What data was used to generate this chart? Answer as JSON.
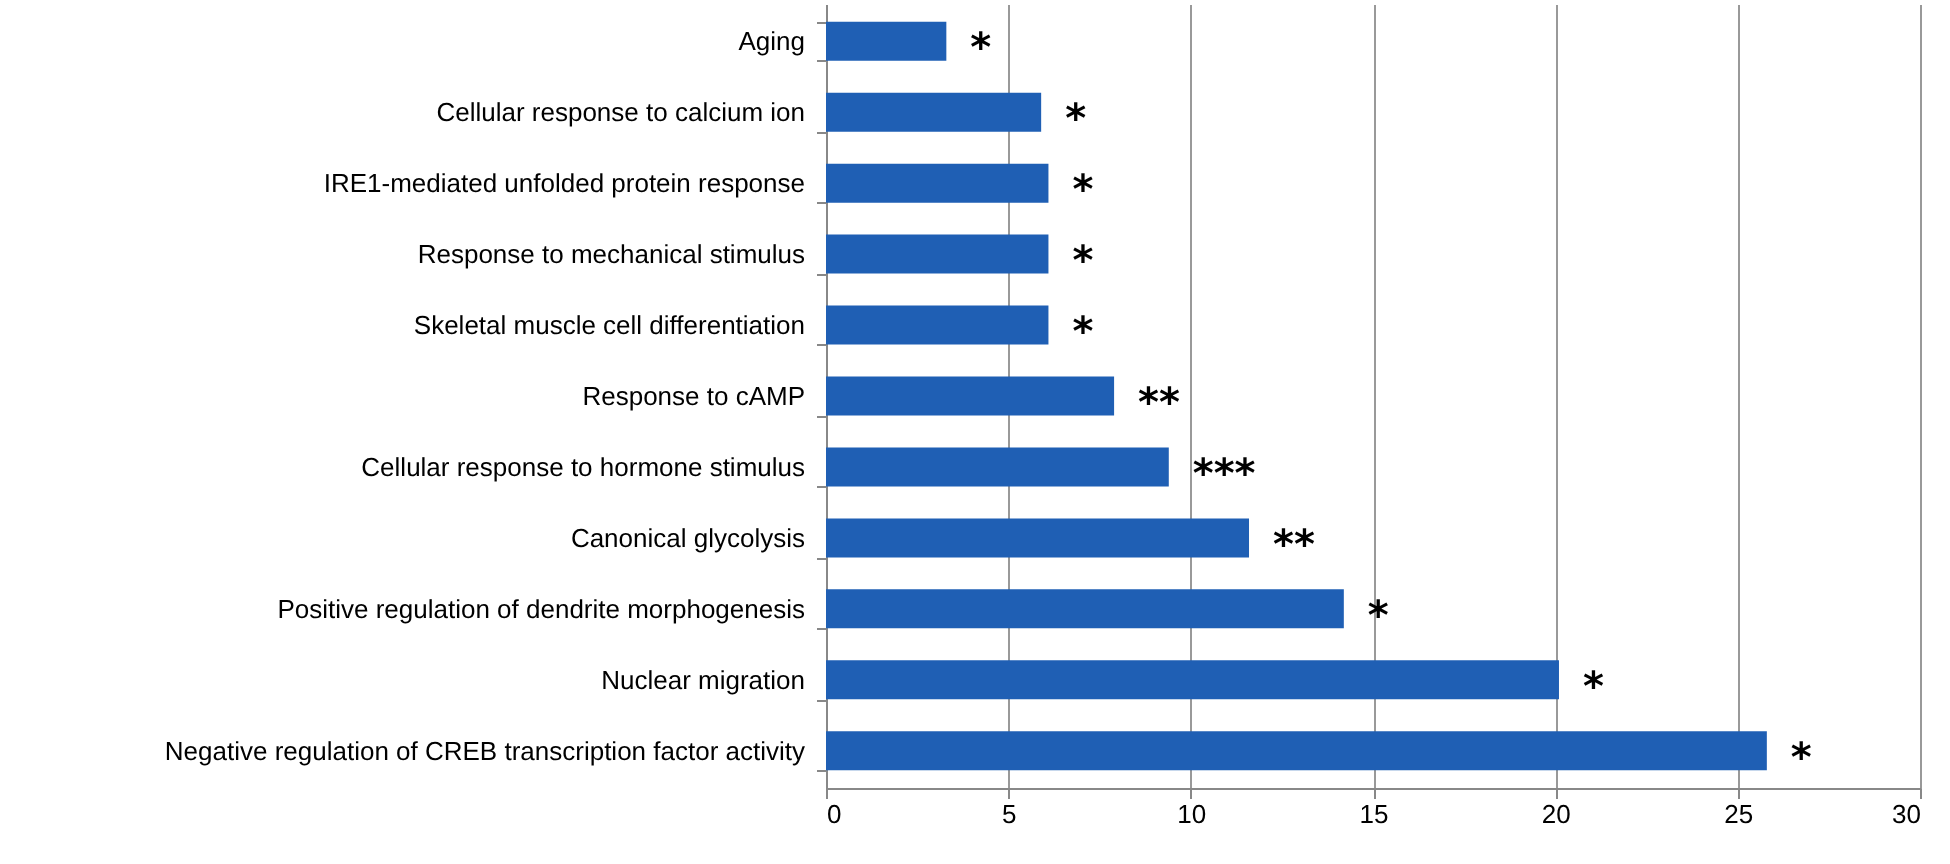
{
  "chart_data": {
    "type": "bar",
    "orientation": "horizontal",
    "categories": [
      "Aging",
      "Cellular response to calcium ion",
      "IRE1-mediated unfolded protein response",
      "Response to mechanical stimulus",
      "Skeletal muscle cell differentiation",
      "Response to cAMP",
      "Cellular response to hormone stimulus",
      "Canonical glycolysis",
      "Positive regulation of dendrite morphogenesis",
      "Nuclear migration",
      "Negative regulation of CREB transcription factor activity"
    ],
    "values": [
      3.3,
      5.9,
      6.1,
      6.1,
      6.1,
      7.9,
      9.4,
      11.6,
      14.2,
      20.1,
      25.8
    ],
    "color": "#1f5fb4",
    "xlim": [
      0,
      30
    ],
    "xticks": [
      0,
      5,
      10,
      15,
      20,
      25,
      30
    ],
    "grid": "x",
    "annotations": [
      {
        "text": "*",
        "x": 3.3,
        "y": "Aging"
      },
      {
        "text": "*",
        "x": 5.9,
        "y": "Cellular response to calcium ion"
      },
      {
        "text": "*",
        "x": 6.1,
        "y": "IRE1-mediated unfolded protein response"
      },
      {
        "text": "*",
        "x": 6.1,
        "y": "Response to mechanical stimulus"
      },
      {
        "text": "*",
        "x": 6.1,
        "y": "Skeletal muscle cell differentiation"
      },
      {
        "text": "**",
        "x": 7.9,
        "y": "Response to cAMP"
      },
      {
        "text": "***",
        "x": 9.4,
        "y": "Cellular response to hormone stimulus"
      },
      {
        "text": "**",
        "x": 11.6,
        "y": "Canonical glycolysis"
      },
      {
        "text": "*",
        "x": 14.2,
        "y": "Positive regulation of dendrite morphogenesis"
      },
      {
        "text": "*",
        "x": 20.1,
        "y": "Nuclear migration"
      },
      {
        "text": "*",
        "x": 25.8,
        "y": "Negative regulation of CREB transcription factor activity"
      }
    ]
  }
}
